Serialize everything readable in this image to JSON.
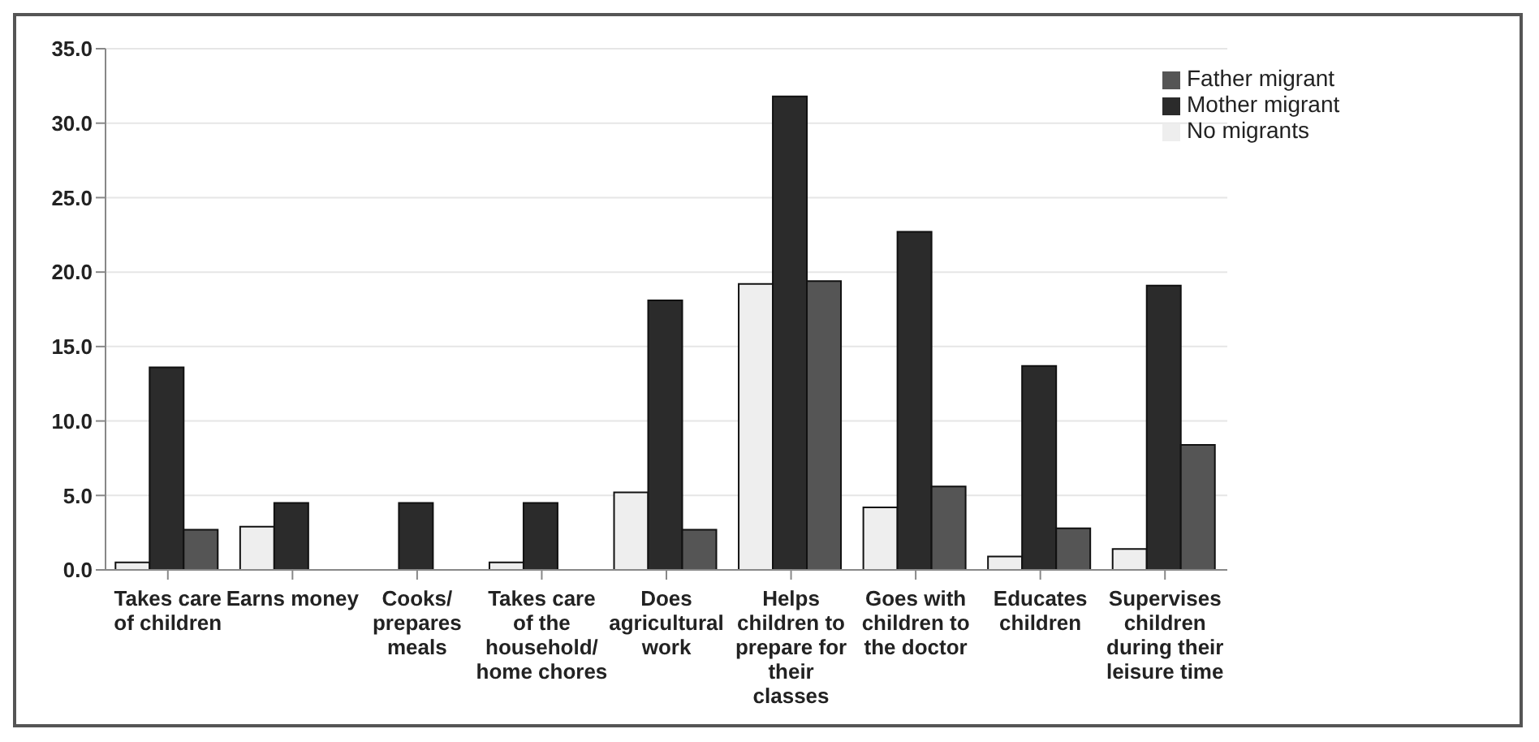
{
  "chart_data": {
    "type": "bar",
    "categories": [
      "Takes care of children",
      "Earns money",
      "Cooks/ prepares meals",
      "Takes care of the household/ home chores",
      "Does agricultural work",
      "Helps children to prepare for their classes",
      "Goes with children to the doctor",
      "Educates children",
      "Supervises children during their leisure time"
    ],
    "series": [
      {
        "name": "No migrants",
        "color": "#eeeeee",
        "values": [
          0.5,
          2.9,
          0,
          0.5,
          5.2,
          19.2,
          4.2,
          0.9,
          1.4
        ]
      },
      {
        "name": "Mother migrant",
        "color": "#2b2b2b",
        "values": [
          13.6,
          4.5,
          4.5,
          4.5,
          18.1,
          31.8,
          22.7,
          13.7,
          19.1
        ]
      },
      {
        "name": "Father migrant",
        "color": "#555555",
        "values": [
          2.7,
          0,
          0,
          0,
          2.7,
          19.4,
          5.6,
          2.8,
          8.4
        ]
      }
    ],
    "ylim": [
      0,
      35
    ],
    "yticks": [
      {
        "value": 0,
        "label": "0.0"
      },
      {
        "value": 5,
        "label": "5.0"
      },
      {
        "value": 10,
        "label": "10.0"
      },
      {
        "value": 15,
        "label": "15.0"
      },
      {
        "value": 20,
        "label": "20.0"
      },
      {
        "value": 25,
        "label": "25.0"
      },
      {
        "value": 30,
        "label": "30.0"
      },
      {
        "value": 35,
        "label": "35.0"
      }
    ],
    "grid": "y",
    "legend": "top right"
  }
}
